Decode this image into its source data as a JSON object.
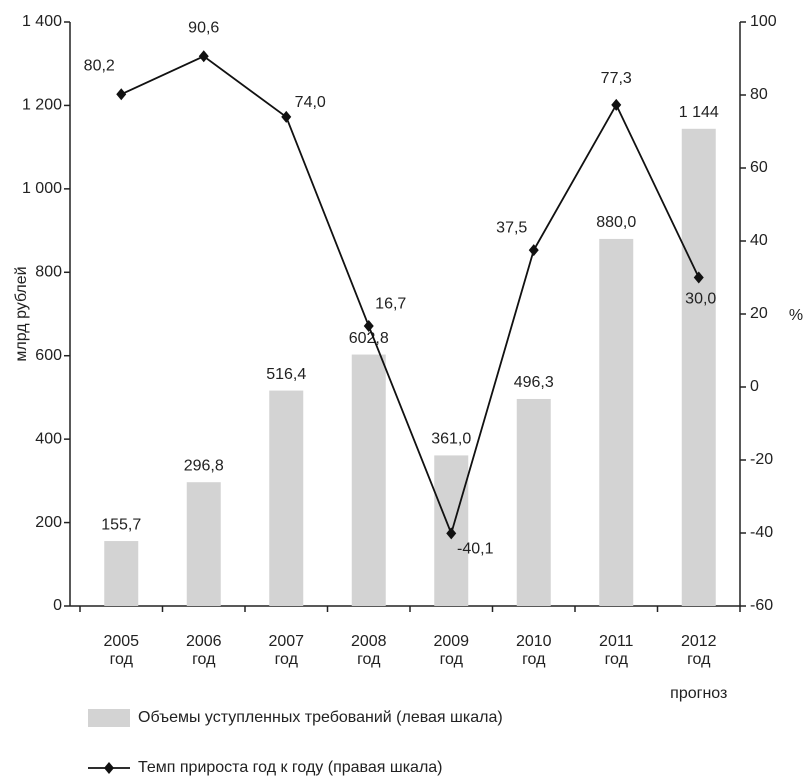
{
  "chart_data": {
    "type": "bar_line",
    "categories": [
      [
        "2005",
        "год"
      ],
      [
        "2006",
        "год"
      ],
      [
        "2007",
        "год"
      ],
      [
        "2008",
        "год"
      ],
      [
        "2009",
        "год"
      ],
      [
        "2010",
        "год"
      ],
      [
        "2011",
        "год"
      ],
      [
        "2012",
        "год",
        "прогноз"
      ]
    ],
    "ylabel": "млрд рублей",
    "y2label": "%",
    "ylim": [
      0,
      1400
    ],
    "yticks": [
      0,
      200,
      400,
      600,
      800,
      {
        "value": 1000,
        "label": "1 000"
      },
      {
        "value": 1200,
        "label": "1 200"
      },
      {
        "value": 1400,
        "label": "1 400"
      }
    ],
    "y2lim": [
      -60,
      100
    ],
    "y2ticks": [
      -60,
      -40,
      -20,
      0,
      20,
      40,
      60,
      80,
      100
    ],
    "series": [
      {
        "name": "Объемы уступленных требований (левая шкала)",
        "type": "bar",
        "color": "#d3d3d3",
        "values": [
          155.7,
          296.8,
          516.4,
          602.8,
          361.0,
          496.3,
          880.0,
          1144
        ],
        "value_labels": [
          "155,7",
          "296,8",
          "516,4",
          "602,8",
          "361,0",
          "496,3",
          "880,0",
          "1 144"
        ]
      },
      {
        "name": "Темп прироста год к году (правая шкала)",
        "type": "line",
        "axis": "y2",
        "color": "#111111",
        "values": [
          80.2,
          90.6,
          74.0,
          16.7,
          -40.1,
          37.5,
          77.3,
          30.0
        ],
        "value_labels": [
          "80,2",
          "90,6",
          "74,0",
          "16,7",
          "-40,1",
          "37,5",
          "77,3",
          "30,0"
        ]
      }
    ]
  }
}
